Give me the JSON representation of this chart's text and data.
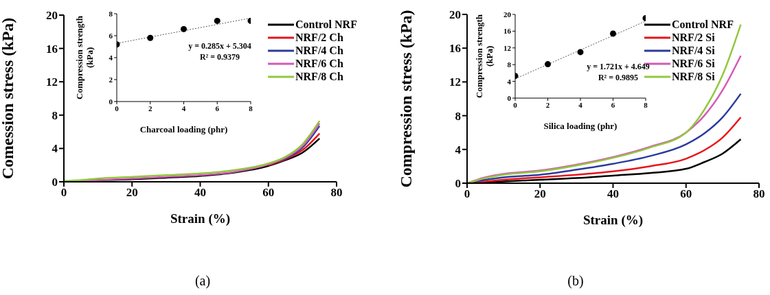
{
  "chart_data": [
    {
      "type": "line",
      "xlabel": "Strain (%)",
      "ylabel": "Comession stress (kPa)",
      "x": [
        0,
        5,
        10,
        20,
        30,
        40,
        50,
        60,
        65,
        70,
        75
      ],
      "xlim": [
        0,
        80
      ],
      "xticks": [
        0,
        20,
        40,
        60,
        80
      ],
      "ylim": [
        0,
        20
      ],
      "yticks": [
        0,
        4,
        8,
        12,
        16,
        20
      ],
      "legend": "top right",
      "marker": "none",
      "line_style": "solid",
      "annotations": [
        "(a)"
      ],
      "series": [
        {
          "name": "Control NRF",
          "color": "#000000",
          "values": [
            0,
            0.1,
            0.2,
            0.3,
            0.5,
            0.7,
            1.1,
            1.9,
            2.6,
            3.5,
            5.2
          ]
        },
        {
          "name": "NRF/2 Ch",
          "color": "#e8141b",
          "values": [
            null,
            null,
            null,
            null,
            null,
            null,
            null,
            2.0,
            2.7,
            3.8,
            5.8
          ]
        },
        {
          "name": "NRF/4 Ch",
          "color": "#2b3a9e",
          "values": [
            null,
            null,
            null,
            null,
            null,
            null,
            null,
            2.1,
            2.8,
            4.1,
            6.7
          ]
        },
        {
          "name": "NRF/6 Ch",
          "color": "#d459b8",
          "values": [
            0,
            0.1,
            0.2,
            0.4,
            0.6,
            0.8,
            1.2,
            2.1,
            2.9,
            4.3,
            7.0
          ]
        },
        {
          "name": "NRF/8 Ch",
          "color": "#92c83e",
          "values": [
            0.1,
            0.2,
            0.4,
            0.6,
            0.8,
            1.0,
            1.4,
            2.2,
            3.0,
            4.5,
            7.3
          ]
        }
      ]
    },
    {
      "type": "scatter",
      "xlabel": "Charcoal loading (phr)",
      "ylabel": "Compression strength (kPa)",
      "xlim": [
        0,
        8
      ],
      "xticks": [
        0,
        2,
        4,
        6,
        8
      ],
      "ylim": [
        0,
        8
      ],
      "yticks": [
        0,
        2,
        4,
        6,
        8
      ],
      "annotations": [
        "y = 0.285x + 5.304",
        "R² = 0.9379"
      ],
      "series": [
        {
          "marker": "circle",
          "color": "#000000",
          "x": [
            0,
            2,
            4,
            6,
            8
          ],
          "values": [
            5.2,
            5.8,
            6.6,
            7.35,
            7.35
          ]
        },
        {
          "type": "line",
          "marker": "none",
          "line_style": "dotted",
          "color": "#595959",
          "x": [
            0,
            8
          ],
          "values": [
            5.3,
            7.6
          ]
        }
      ]
    },
    {
      "type": "line",
      "xlabel": "Strain (%)",
      "ylabel": "Compression stress (kPa)",
      "x": [
        0,
        5,
        10,
        20,
        30,
        40,
        50,
        60,
        65,
        70,
        75
      ],
      "xlim": [
        0,
        80
      ],
      "xticks": [
        0,
        20,
        40,
        60,
        80
      ],
      "ylim": [
        0,
        20
      ],
      "yticks": [
        0,
        4,
        8,
        12,
        16,
        20
      ],
      "legend": "top right",
      "marker": "none",
      "line_style": "solid",
      "annotations": [
        "(b)"
      ],
      "series": [
        {
          "name": "Control NRF",
          "color": "#000000",
          "values": [
            0,
            0.1,
            0.2,
            0.4,
            0.6,
            0.9,
            1.2,
            1.7,
            2.5,
            3.5,
            5.2
          ]
        },
        {
          "name": "NRF/2 Si",
          "color": "#e8141b",
          "values": [
            0,
            0.2,
            0.4,
            0.7,
            1.0,
            1.4,
            2.0,
            2.9,
            3.9,
            5.4,
            7.8
          ]
        },
        {
          "name": "NRF/4 Si",
          "color": "#2b3a9e",
          "values": [
            0,
            0.4,
            0.7,
            1.0,
            1.6,
            2.3,
            3.2,
            4.6,
            5.9,
            7.8,
            10.6
          ]
        },
        {
          "name": "NRF/6 Si",
          "color": "#d459b8",
          "values": [
            0,
            0.7,
            1.1,
            1.5,
            2.2,
            3.1,
            4.3,
            6.0,
            8.0,
            11.0,
            15.1
          ]
        },
        {
          "name": "NRF/8 Si",
          "color": "#92c83e",
          "values": [
            0,
            0.6,
            1.0,
            1.4,
            2.1,
            3.0,
            4.2,
            6.0,
            8.7,
            12.8,
            18.8
          ]
        }
      ]
    },
    {
      "type": "scatter",
      "xlabel": "Silica loading (phr)",
      "ylabel": "Compression strength (kPa)",
      "xlim": [
        0,
        8
      ],
      "xticks": [
        0,
        2,
        4,
        6,
        8
      ],
      "ylim": [
        0,
        20
      ],
      "yticks": [
        0,
        4,
        8,
        12,
        16,
        20
      ],
      "annotations": [
        "y = 1.721x + 4.649",
        "R² = 0.9895"
      ],
      "series": [
        {
          "marker": "circle",
          "color": "#000000",
          "x": [
            0,
            2,
            4,
            6,
            8
          ],
          "values": [
            5.3,
            8.1,
            11.0,
            15.4,
            19.1
          ]
        },
        {
          "type": "line",
          "marker": "none",
          "line_style": "dotted",
          "color": "#595959",
          "x": [
            0,
            8
          ],
          "values": [
            4.6,
            18.4
          ]
        }
      ]
    }
  ]
}
